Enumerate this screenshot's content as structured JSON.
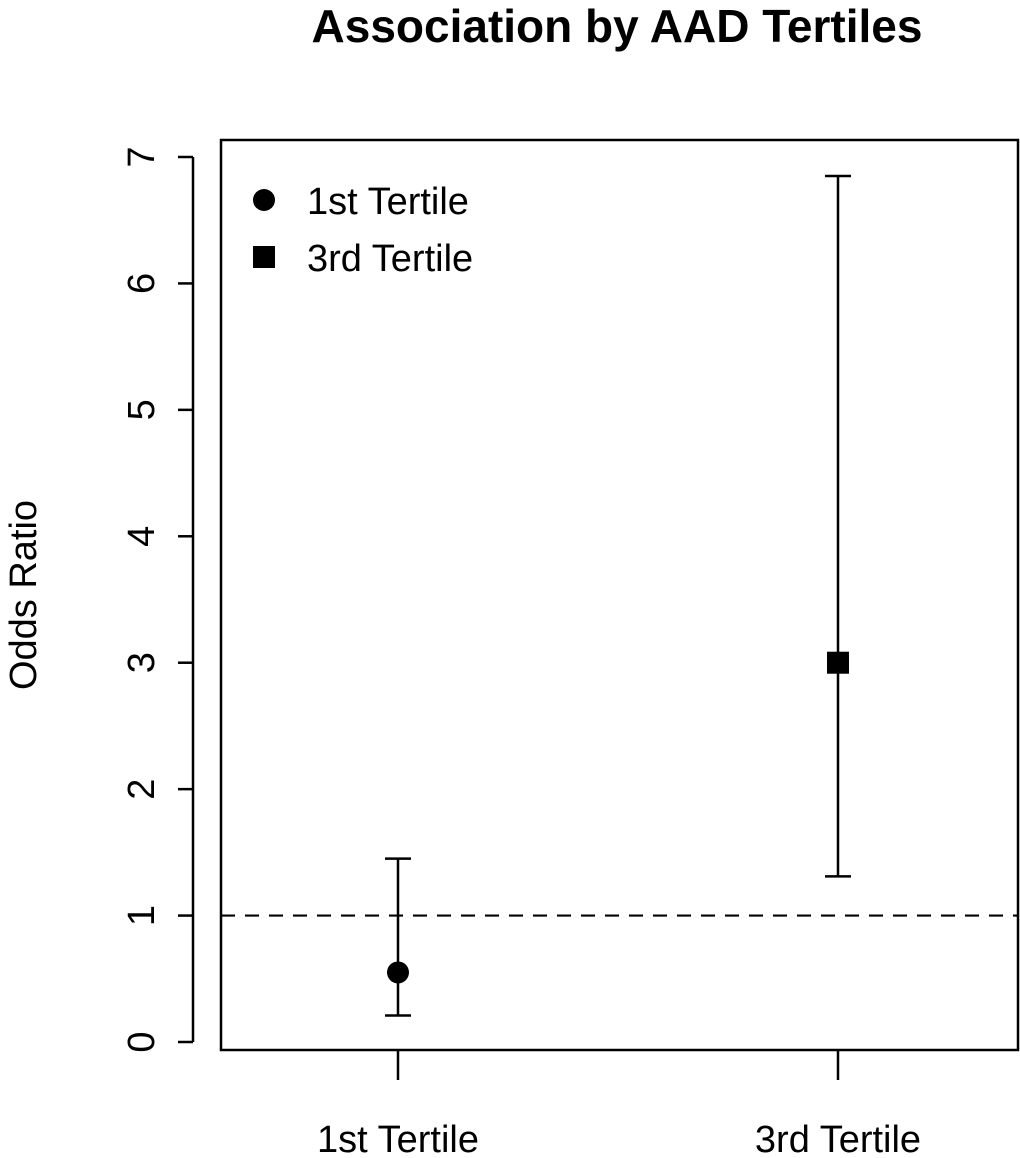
{
  "chart_data": {
    "type": "scatter",
    "title": "Association by AAD Tertiles",
    "xlabel": "",
    "ylabel": "Odds Ratio",
    "categories": [
      "1st Tertile",
      "3rd Tertile"
    ],
    "ylim": [
      0,
      7
    ],
    "yticks": [
      0,
      1,
      2,
      3,
      4,
      5,
      6,
      7
    ],
    "reference_line": {
      "y": 1,
      "style": "dashed"
    },
    "series": [
      {
        "name": "1st Tertile",
        "category": "1st Tertile",
        "marker": "circle",
        "value": 0.55,
        "ci_low": 0.21,
        "ci_high": 1.45
      },
      {
        "name": "3rd Tertile",
        "category": "3rd Tertile",
        "marker": "square",
        "value": 3.0,
        "ci_low": 1.31,
        "ci_high": 6.85
      }
    ],
    "legend": {
      "position": "top-left",
      "entries": [
        "1st Tertile",
        "3rd Tertile"
      ]
    },
    "grid": false
  }
}
